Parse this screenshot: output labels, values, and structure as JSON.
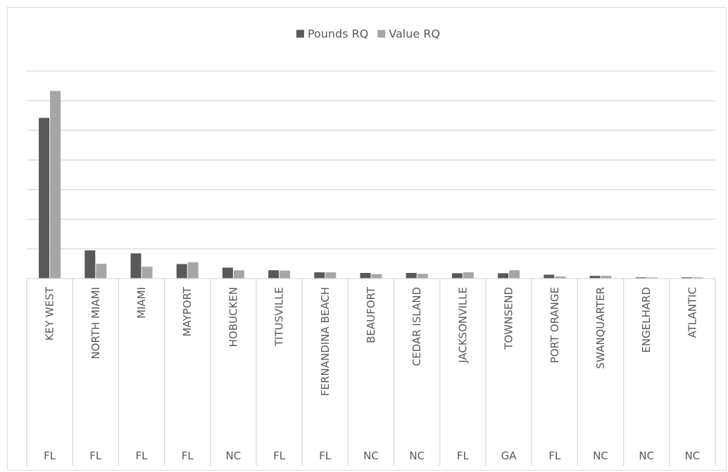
{
  "chart_data": {
    "type": "bar",
    "title": "",
    "xlabel": "",
    "ylabel": "",
    "ylim": [
      0,
      7
    ],
    "grid": true,
    "legend_position": "top-center",
    "categories": [
      "KEY WEST",
      "NORTH MIAMI",
      "MIAMI",
      "MAYPORT",
      "HOBUCKEN",
      "TITUSVILLE",
      "FERNANDINA BEACH",
      "BEAUFORT",
      "CEDAR ISLAND",
      "JACKSONVILLE",
      "TOWNSEND",
      "PORT ORANGE",
      "SWANQUARTER",
      "ENGELHARD",
      "ATLANTIC"
    ],
    "states": [
      "FL",
      "FL",
      "FL",
      "FL",
      "NC",
      "FL",
      "FL",
      "NC",
      "NC",
      "FL",
      "GA",
      "FL",
      "NC",
      "NC",
      "NC"
    ],
    "series": [
      {
        "name": "Pounds RQ",
        "color": "#595959",
        "values": [
          5.42,
          0.95,
          0.85,
          0.49,
          0.37,
          0.28,
          0.21,
          0.19,
          0.19,
          0.18,
          0.18,
          0.13,
          0.09,
          0.04,
          0.04
        ]
      },
      {
        "name": "Value RQ",
        "color": "#a6a6a6",
        "values": [
          6.33,
          0.5,
          0.4,
          0.55,
          0.28,
          0.27,
          0.21,
          0.15,
          0.16,
          0.21,
          0.28,
          0.07,
          0.09,
          0.04,
          0.04
        ]
      }
    ]
  }
}
